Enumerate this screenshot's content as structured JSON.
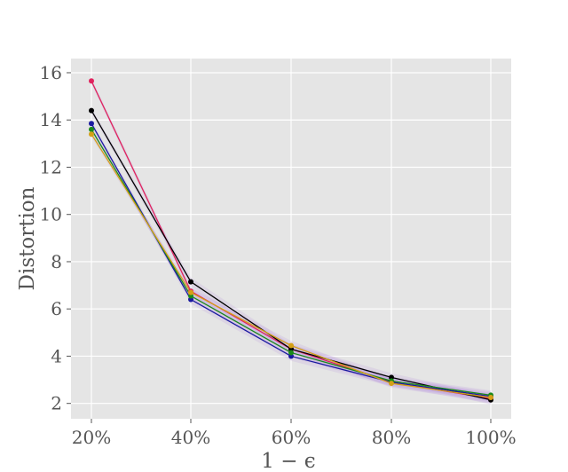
{
  "chart_data": {
    "type": "line",
    "title": "",
    "xlabel": "1 − ϵ",
    "ylabel": "Distortion",
    "categories": [
      "20%",
      "40%",
      "60%",
      "80%",
      "100%"
    ],
    "y_ticks": [
      2,
      4,
      6,
      8,
      10,
      12,
      14,
      16
    ],
    "y_tick_labels": [
      "2",
      "4",
      "6",
      "8",
      "10",
      "12",
      "14",
      "16"
    ],
    "ylim": [
      1.35,
      16.6
    ],
    "grid": true,
    "series": [
      {
        "color": "#e0245e",
        "values": [
          15.65,
          6.75,
          4.3,
          2.9,
          2.2
        ]
      },
      {
        "color": "#000000",
        "values": [
          14.4,
          7.15,
          4.3,
          3.1,
          2.15
        ]
      },
      {
        "color": "#1a1aa0",
        "values": [
          13.85,
          6.4,
          4.0,
          2.9,
          2.3
        ]
      },
      {
        "color": "#1a8a1a",
        "values": [
          13.6,
          6.55,
          4.15,
          2.95,
          2.35
        ]
      },
      {
        "color": "#d4a017",
        "values": [
          13.4,
          6.7,
          4.45,
          2.85,
          2.25
        ]
      }
    ],
    "band_color": "#b58ee0"
  }
}
